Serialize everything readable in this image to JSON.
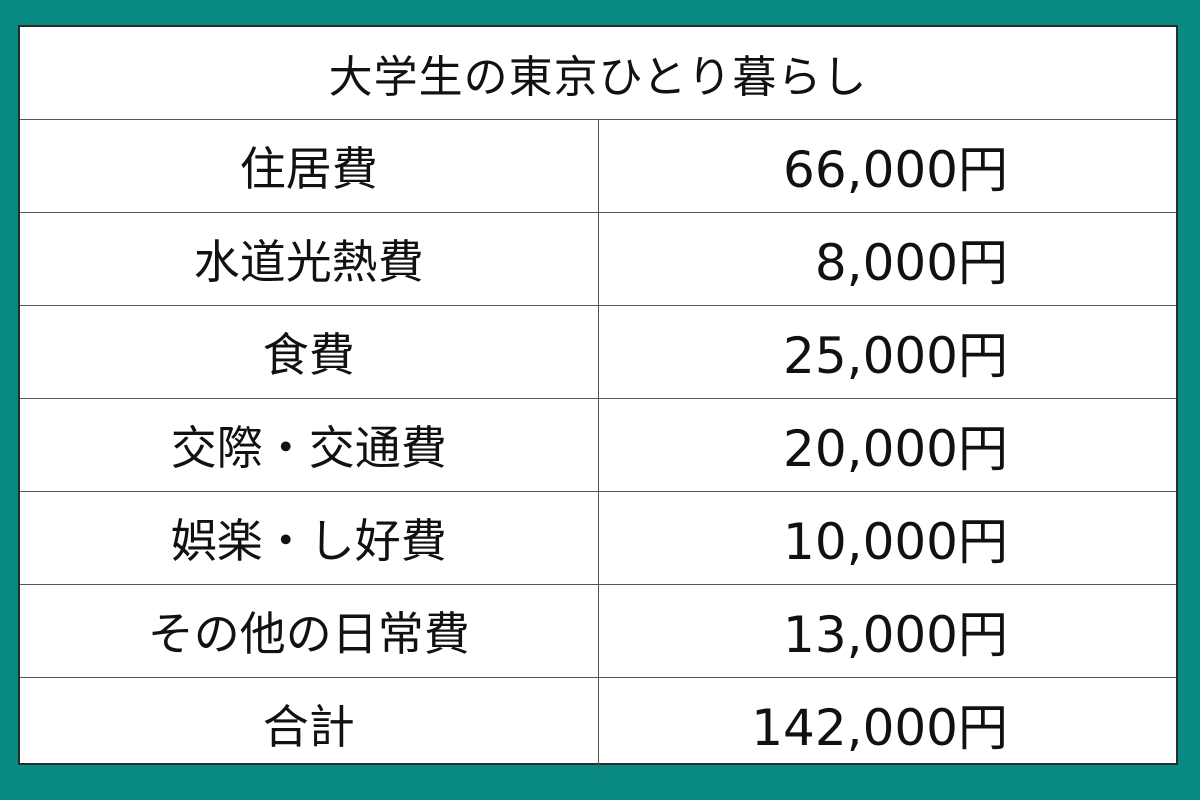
{
  "table": {
    "title": "大学生の東京ひとり暮らし",
    "rows": [
      {
        "label": "住居費",
        "amount": "66,000円"
      },
      {
        "label": "水道光熱費",
        "amount": "8,000円"
      },
      {
        "label": "食費",
        "amount": "25,000円"
      },
      {
        "label": "交際・交通費",
        "amount": "20,000円"
      },
      {
        "label": "娯楽・し好費",
        "amount": "10,000円"
      },
      {
        "label": "その他の日常費",
        "amount": "13,000円"
      },
      {
        "label": "合計",
        "amount": "142,000円"
      }
    ]
  },
  "colors": {
    "background": "#0a8a84",
    "table_background": "#ffffff",
    "text": "#111111",
    "border": "#555555"
  }
}
